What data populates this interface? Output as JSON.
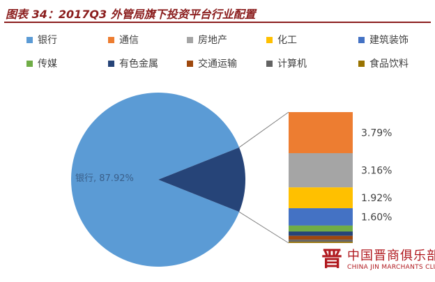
{
  "title": "图表 34：2017Q3 外管局旗下投资平台行业配置",
  "chart_data": {
    "type": "pie",
    "subtype": "bar-of-pie",
    "legend_position": "top",
    "categories": [
      "银行",
      "通信",
      "房地产",
      "化工",
      "建筑装饰",
      "传媒",
      "有色金属",
      "交通运输",
      "计算机",
      "食品饮料"
    ],
    "colors": [
      "#5b9bd5",
      "#ed7d31",
      "#a5a5a5",
      "#ffc000",
      "#4472c4",
      "#70ad47",
      "#264478",
      "#9e480e",
      "#636363",
      "#997300"
    ],
    "main_slice": {
      "label": "银行, 87.92%",
      "value": 87.92
    },
    "other_share": 12.08,
    "stack": [
      {
        "category": "通信",
        "value": 3.79,
        "label": "3.79%",
        "color": "#ed7d31"
      },
      {
        "category": "房地产",
        "value": 3.16,
        "label": "3.16%",
        "color": "#a5a5a5"
      },
      {
        "category": "化工",
        "value": 1.92,
        "label": "1.92%",
        "color": "#ffc000"
      },
      {
        "category": "建筑装饰",
        "value": 1.6,
        "label": "1.60%",
        "color": "#4472c4"
      },
      {
        "category": "传媒",
        "value": 0.55,
        "label": "",
        "color": "#70ad47"
      },
      {
        "category": "有色金属",
        "value": 0.4,
        "label": "",
        "color": "#264478"
      },
      {
        "category": "交通运输",
        "value": 0.35,
        "label": "",
        "color": "#9e480e"
      },
      {
        "category": "计算机",
        "value": 0.2,
        "label": "",
        "color": "#636363"
      },
      {
        "category": "食品饮料",
        "value": 0.11,
        "label": "",
        "color": "#997300"
      }
    ]
  },
  "watermark": {
    "logo": "晋",
    "cn": "中国晋商俱乐部",
    "en": "CHINA JIN MARCHANTS CLUB"
  }
}
